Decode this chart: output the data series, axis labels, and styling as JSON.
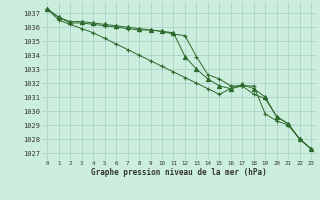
{
  "title": "Graphe pression niveau de la mer (hPa)",
  "background_color": "#cceedd",
  "grid_color": "#aacccc",
  "line_color": "#2d6a2d",
  "ylim": [
    1026.5,
    1037.8
  ],
  "yticks": [
    1027,
    1028,
    1029,
    1030,
    1031,
    1032,
    1033,
    1034,
    1035,
    1036,
    1037
  ],
  "series": [
    [
      1037.3,
      1036.7,
      1036.3,
      1036.3,
      1036.2,
      1036.1,
      1036.0,
      1035.9,
      1035.8,
      1035.8,
      1035.7,
      1035.5,
      1035.4,
      1033.9,
      1032.6,
      1032.3,
      1031.8,
      1031.8,
      1031.8,
      1029.8,
      1029.3,
      1029.0,
      1028.0,
      1027.3
    ],
    [
      1037.3,
      1036.7,
      1036.4,
      1036.4,
      1036.3,
      1036.2,
      1036.1,
      1036.0,
      1035.9,
      1035.8,
      1035.7,
      1035.6,
      1033.9,
      1033.0,
      1032.3,
      1031.8,
      1031.6,
      1031.9,
      1031.6,
      1031.0,
      1029.6,
      1029.1,
      1028.0,
      1027.3
    ],
    [
      1037.3,
      1036.5,
      1036.2,
      1035.9,
      1035.6,
      1035.2,
      1034.8,
      1034.4,
      1034.0,
      1033.6,
      1033.2,
      1032.8,
      1032.4,
      1032.0,
      1031.6,
      1031.2,
      1031.6,
      1031.8,
      1031.2,
      1030.9,
      1029.6,
      1029.1,
      1028.0,
      1027.3
    ]
  ]
}
